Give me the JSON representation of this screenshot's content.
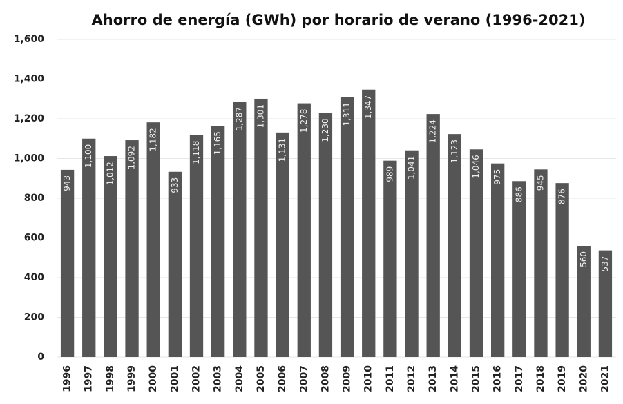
{
  "chart_data": {
    "type": "bar",
    "title": "Ahorro de energía (GWh) por horario de verano (1996-2021)",
    "categories": [
      "1996",
      "1997",
      "1998",
      "1999",
      "2000",
      "2001",
      "2002",
      "2003",
      "2004",
      "2005",
      "2006",
      "2007",
      "2008",
      "2009",
      "2010",
      "2011",
      "2012",
      "2013",
      "2014",
      "2015",
      "2016",
      "2017",
      "2018",
      "2019",
      "2020",
      "2021"
    ],
    "values": [
      943,
      1100,
      1012,
      1092,
      1182,
      933,
      1118,
      1165,
      1287,
      1301,
      1131,
      1278,
      1230,
      1311,
      1347,
      989,
      1041,
      1224,
      1123,
      1046,
      975,
      886,
      945,
      876,
      560,
      537
    ],
    "value_labels": [
      "943",
      "1,100",
      "1,012",
      "1,092",
      "1,182",
      "933",
      "1,118",
      "1,165",
      "1,287",
      "1,301",
      "1,131",
      "1,278",
      "1,230",
      "1,311",
      "1,347",
      "989",
      "1,041",
      "1,224",
      "1,123",
      "1,046",
      "975",
      "886",
      "945",
      "876",
      "560",
      "537"
    ],
    "color": "#555555",
    "ylim": [
      0,
      1600
    ],
    "yticks": [
      0,
      200,
      400,
      600,
      800,
      {
        "value": 1000,
        "label": "1,000"
      },
      {
        "value": 1200,
        "label": "1,200"
      },
      {
        "value": 1400,
        "label": "1,400"
      },
      {
        "value": 1600,
        "label": "1,600"
      }
    ],
    "grid": true
  }
}
